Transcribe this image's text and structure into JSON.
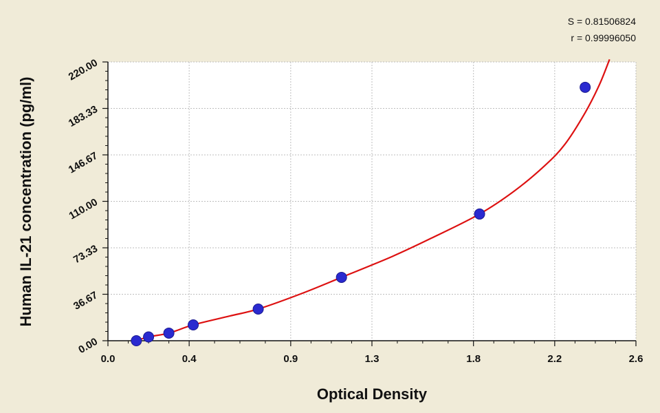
{
  "chart_data": {
    "type": "scatter",
    "title": "",
    "xlabel": "Optical Density",
    "ylabel": "Human IL-21 concentration (pg/ml)",
    "xlim": [
      0.0,
      2.6
    ],
    "ylim": [
      0.0,
      220.0
    ],
    "x_ticks": [
      0.0,
      0.4,
      0.9,
      1.3,
      1.8,
      2.2,
      2.6
    ],
    "x_tick_labels": [
      "0.0",
      "0.4",
      "0.9",
      "1.3",
      "1.8",
      "2.2",
      "2.6"
    ],
    "y_ticks": [
      0,
      36.67,
      73.33,
      110,
      146.67,
      183.33,
      220
    ],
    "y_tick_labels": [
      "0.00",
      "36.67",
      "73.33",
      "110.00",
      "146.67",
      "183.33",
      "220.00"
    ],
    "grid": true,
    "annotations": {
      "s_text": "S = 0.81506824",
      "r_text": "r = 0.99996050"
    },
    "series": [
      {
        "kind": "points",
        "x": [
          0.14,
          0.2,
          0.3,
          0.42,
          0.74,
          1.15,
          1.83,
          2.35
        ],
        "y": [
          0.0,
          3.0,
          6.0,
          12.5,
          25.0,
          50.0,
          100.0,
          200.0
        ]
      },
      {
        "kind": "fit",
        "x": [
          0.12,
          0.2,
          0.3,
          0.42,
          0.6,
          0.74,
          0.95,
          1.15,
          1.4,
          1.6,
          1.83,
          2.0,
          2.15,
          2.25,
          2.35,
          2.42,
          2.47
        ],
        "y": [
          -1.0,
          3.0,
          6.0,
          12.5,
          19.5,
          25.0,
          37.0,
          50.0,
          66.5,
          81.5,
          100.0,
          118.0,
          138.0,
          155.0,
          180.0,
          202.0,
          222.0
        ]
      }
    ],
    "colors": {
      "points": "#2a2ad0",
      "fit": "#dd1111",
      "grid": "#bdbdbd",
      "axis": "#111111",
      "plot_bg": "#ffffff"
    }
  }
}
